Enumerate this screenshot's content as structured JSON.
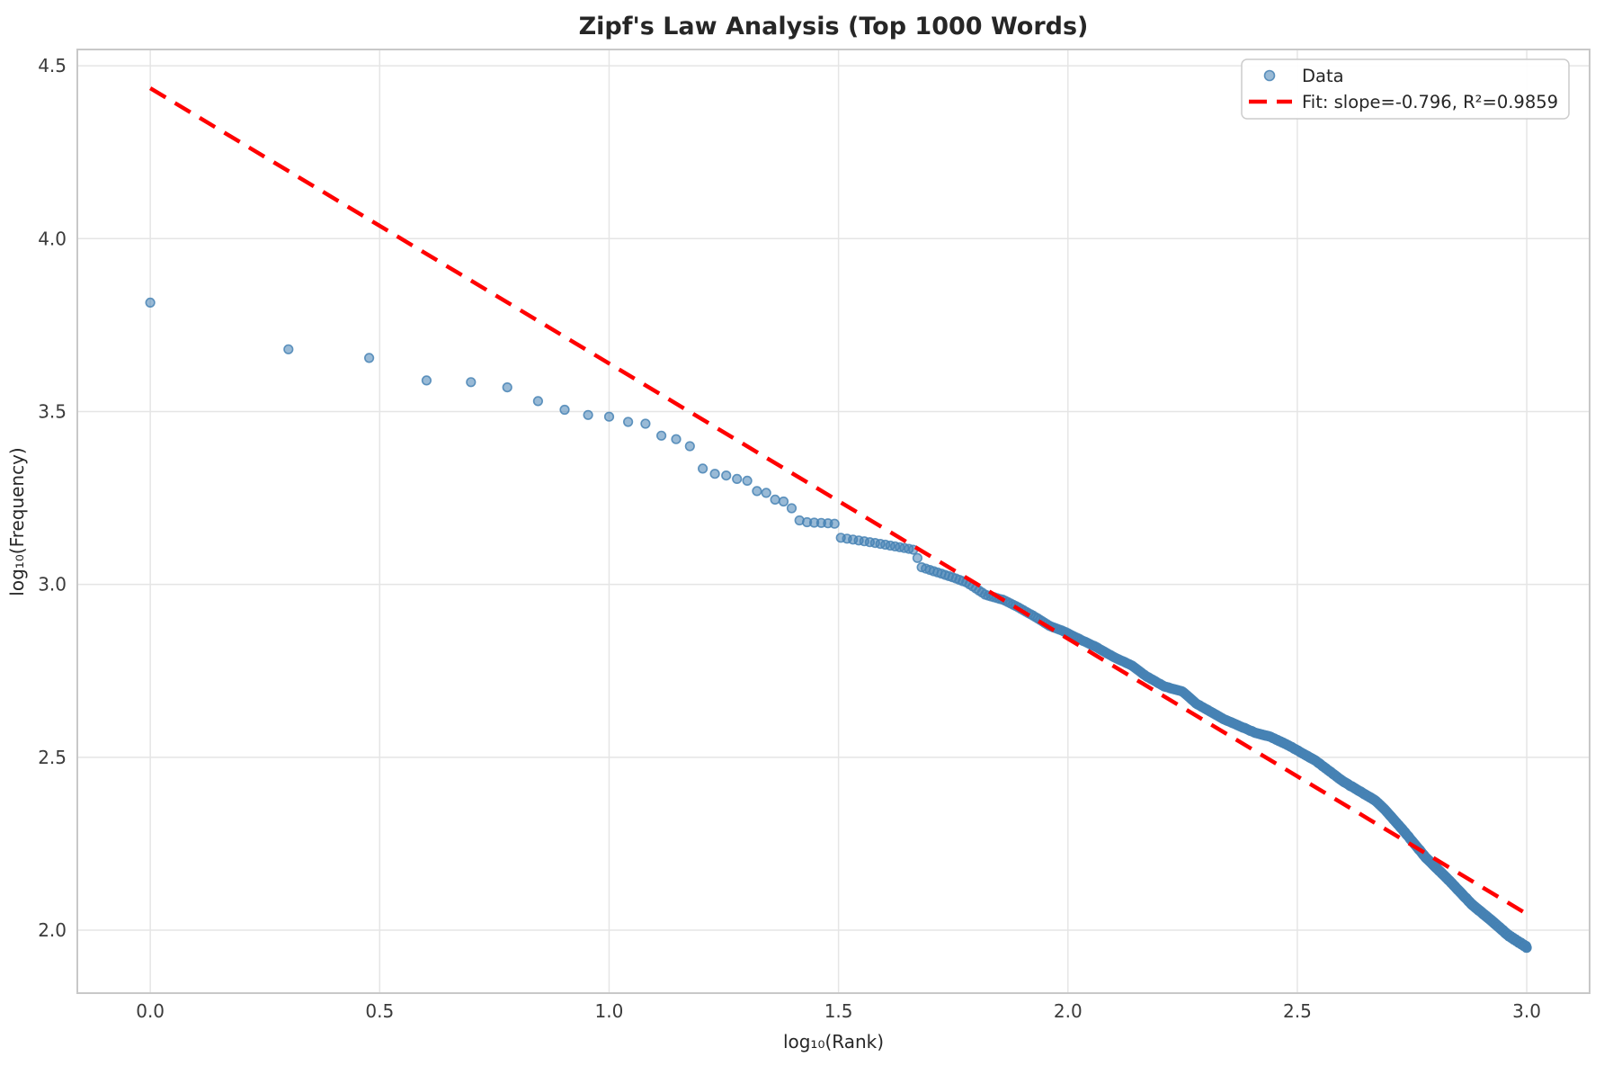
{
  "title": "Zipf's Law Analysis (Top 1000 Words)",
  "chart_data": {
    "type": "scatter",
    "title": "Zipf's Law Analysis (Top 1000 Words)",
    "xlabel": "log₁₀(Rank)",
    "ylabel": "log₁₀(Frequency)",
    "xlim": [
      -0.159,
      3.137
    ],
    "ylim": [
      1.818,
      4.547
    ],
    "x_ticks": [
      0.0,
      0.5,
      1.0,
      1.5,
      2.0,
      2.5,
      3.0
    ],
    "x_tick_labels": [
      "0.0",
      "0.5",
      "1.0",
      "1.5",
      "2.0",
      "2.5",
      "3.0"
    ],
    "y_ticks": [
      2.0,
      2.5,
      3.0,
      3.5,
      4.0,
      4.5
    ],
    "y_tick_labels": [
      "2.0",
      "2.5",
      "3.0",
      "3.5",
      "4.0",
      "4.5"
    ],
    "grid": true,
    "legend_position": "upper right",
    "series": [
      {
        "name": "Data",
        "type": "scatter",
        "color": "#4682B4",
        "alpha": 0.6,
        "n_points": 1000,
        "x_desc": "x = log10(rank) for rank = 1..1000; y = log10(word frequency), read from plot",
        "curve_anchor_points": {
          "log_rank": [
            0.0,
            0.301,
            0.477,
            0.602,
            0.699,
            0.778,
            0.845,
            0.903,
            0.954,
            1.0,
            1.041,
            1.079,
            1.114,
            1.146,
            1.176,
            1.204,
            1.23,
            1.255,
            1.279,
            1.301,
            1.322,
            1.342,
            1.362,
            1.38,
            1.398,
            1.415,
            1.431,
            1.5,
            1.505,
            1.58,
            1.665,
            1.68,
            1.75,
            1.78,
            1.82,
            1.86,
            1.89,
            1.93,
            1.96,
            1.99,
            2.02,
            2.06,
            2.1,
            2.14,
            2.17,
            2.21,
            2.25,
            2.28,
            2.34,
            2.41,
            2.44,
            2.48,
            2.54,
            2.6,
            2.67,
            2.69,
            2.73,
            2.78,
            2.83,
            2.88,
            2.93,
            2.96,
            3.0
          ],
          "log_freq": [
            3.815,
            3.68,
            3.655,
            3.59,
            3.585,
            3.57,
            3.53,
            3.505,
            3.49,
            3.485,
            3.47,
            3.465,
            3.43,
            3.42,
            3.4,
            3.335,
            3.32,
            3.315,
            3.305,
            3.3,
            3.27,
            3.265,
            3.245,
            3.24,
            3.22,
            3.185,
            3.18,
            3.175,
            3.135,
            3.12,
            3.1,
            3.05,
            3.02,
            3.005,
            2.97,
            2.955,
            2.935,
            2.905,
            2.88,
            2.865,
            2.845,
            2.82,
            2.79,
            2.765,
            2.735,
            2.705,
            2.69,
            2.655,
            2.61,
            2.57,
            2.56,
            2.535,
            2.49,
            2.43,
            2.375,
            2.35,
            2.29,
            2.21,
            2.145,
            2.075,
            2.02,
            1.985,
            1.951
          ]
        }
      },
      {
        "name": "Fit: slope=-0.796, R²=0.9859",
        "type": "line",
        "style": "dashed",
        "color": "#FF0000",
        "slope": -0.796,
        "intercept": 4.435,
        "r_squared": 0.9859,
        "x_start": 0.0,
        "x_end": 3.0
      }
    ]
  },
  "legend": {
    "items": [
      {
        "label": "Data"
      },
      {
        "label": "Fit: slope=-0.796, R²=0.9859"
      }
    ]
  },
  "colors": {
    "scatter": "#4682B4",
    "fit_line": "#FF0000",
    "grid": "#E5E5E5",
    "spine": "#C8C8C8",
    "text": "#262626",
    "background": "#FFFFFF"
  }
}
